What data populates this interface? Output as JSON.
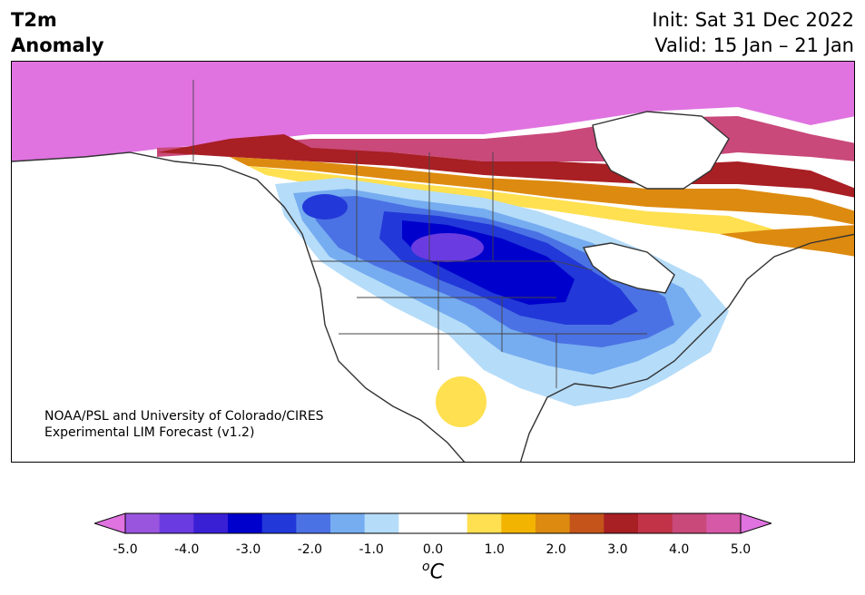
{
  "title": {
    "line1": "T2m",
    "line2": "Anomaly"
  },
  "dates": {
    "init": "Init: Sat 31 Dec 2022",
    "valid": "Valid: 15 Jan – 21 Jan"
  },
  "credit": {
    "line1": "NOAA/PSL and University of Colorado/CIRES",
    "line2": "Experimental LIM Forecast (v1.2)"
  },
  "colorbar": {
    "colors": [
      "#e073e0",
      "#9a55df",
      "#6a3be0",
      "#3a20d5",
      "#0000cc",
      "#2238d8",
      "#4b72e4",
      "#76acf0",
      "#b5dcf9",
      "#ffffff",
      "#ffffff",
      "#ffe050",
      "#f2b400",
      "#dd8a10",
      "#c4541a",
      "#a81f24",
      "#c23348",
      "#c9497a",
      "#d659a8",
      "#e073e0"
    ],
    "ticks": [
      "-5.0",
      "-4.0",
      "-3.0",
      "-2.0",
      "-1.0",
      "0.0",
      "1.0",
      "2.0",
      "3.0",
      "4.0",
      "5.0"
    ],
    "unit": "C",
    "unit_prefix": "o"
  }
}
